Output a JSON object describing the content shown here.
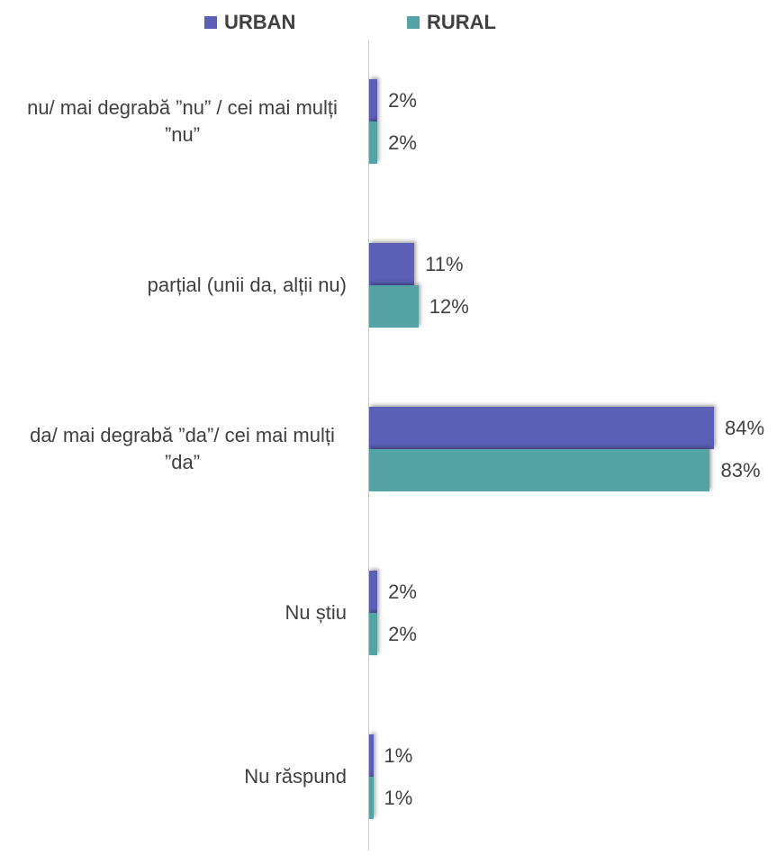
{
  "chart_data": {
    "type": "bar",
    "orientation": "horizontal",
    "categories": [
      "nu/ mai degrabă ”nu” / cei mai mulți ”nu”",
      "parțial (unii da, alții nu)",
      "da/ mai degrabă ”da”/ cei mai mulți ”da”",
      "Nu știu",
      "Nu răspund"
    ],
    "series": [
      {
        "name": "URBAN",
        "color": "#5b5fb5",
        "values": [
          2,
          11,
          84,
          2,
          1
        ],
        "value_labels": [
          "2%",
          "11%",
          "84%",
          "2%",
          "1%"
        ]
      },
      {
        "name": "RURAL",
        "color": "#56a3a6",
        "values": [
          2,
          12,
          83,
          2,
          1
        ],
        "value_labels": [
          "2%",
          "12%",
          "83%",
          "2%",
          "1%"
        ]
      }
    ],
    "xlim": [
      0,
      100
    ],
    "legend": "top"
  }
}
